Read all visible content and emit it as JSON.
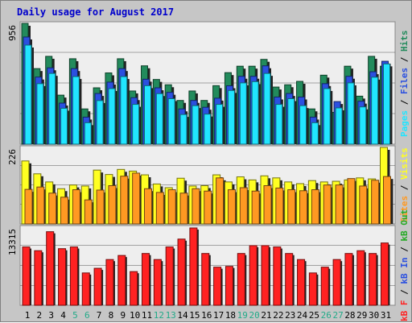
{
  "title": "Daily usage for August 2017",
  "colors": {
    "hits": "#228b5c",
    "files": "#2b50e0",
    "pages": "#21e5ff",
    "visits": "#ffff22",
    "sites": "#ff9922",
    "kbf": "#ff2222",
    "kbin": "#2b50e0",
    "kbout": "#22aa22",
    "title": "#0000cc",
    "weekend": "#22aa88",
    "weekday": "#000000",
    "panel_bg": "#eeeeee",
    "frame_bg": "#c6c6c6"
  },
  "legends": {
    "top": [
      {
        "text": "Pages",
        "color": "#21e5ff"
      },
      {
        "text": " / ",
        "color": "#000000"
      },
      {
        "text": "Files",
        "color": "#2b50e0"
      },
      {
        "text": " / ",
        "color": "#000000"
      },
      {
        "text": "Hits",
        "color": "#228b5c"
      }
    ],
    "middle": [
      {
        "text": "Sites",
        "color": "#ff9922"
      },
      {
        "text": " / ",
        "color": "#000000"
      },
      {
        "text": "Visits",
        "color": "#ffff22"
      }
    ],
    "bottom": [
      {
        "text": "kB F",
        "color": "#ff2222"
      },
      {
        "text": " / ",
        "color": "#000000"
      },
      {
        "text": "kB In",
        "color": "#2b50e0"
      },
      {
        "text": " / ",
        "color": "#000000"
      },
      {
        "text": "kB Out",
        "color": "#22aa22"
      }
    ]
  },
  "chart_data": [
    {
      "type": "bar",
      "panel": "hits-files-pages",
      "categories": [
        "1",
        "2",
        "3",
        "4",
        "5",
        "6",
        "7",
        "8",
        "9",
        "10",
        "11",
        "12",
        "13",
        "14",
        "15",
        "16",
        "17",
        "18",
        "19",
        "20",
        "21",
        "22",
        "23",
        "24",
        "25",
        "26",
        "27",
        "28",
        "29",
        "30",
        "31"
      ],
      "ylabel": "956",
      "ylim": [
        0,
        956
      ],
      "series": [
        {
          "name": "Hits",
          "values": [
            956,
            598,
            695,
            388,
            676,
            279,
            446,
            564,
            676,
            421,
            620,
            512,
            470,
            346,
            421,
            346,
            463,
            566,
            617,
            617,
            671,
            452,
            470,
            497,
            279,
            546,
            252,
            617,
            380,
            695,
            617
          ]
        },
        {
          "name": "Files",
          "values": [
            848,
            531,
            604,
            325,
            598,
            214,
            401,
            491,
            598,
            368,
            514,
            446,
            410,
            279,
            346,
            292,
            364,
            462,
            537,
            537,
            620,
            373,
            401,
            373,
            214,
            479,
            337,
            537,
            340,
            573,
            656
          ]
        },
        {
          "name": "Pages",
          "values": [
            784,
            479,
            560,
            284,
            535,
            170,
            345,
            440,
            535,
            315,
            463,
            400,
            360,
            235,
            305,
            238,
            315,
            425,
            485,
            495,
            560,
            315,
            360,
            305,
            170,
            440,
            287,
            485,
            295,
            530,
            635
          ]
        }
      ]
    },
    {
      "type": "bar",
      "panel": "visits-sites",
      "categories": [
        "1",
        "2",
        "3",
        "4",
        "5",
        "6",
        "7",
        "8",
        "9",
        "10",
        "11",
        "12",
        "13",
        "14",
        "15",
        "16",
        "17",
        "18",
        "19",
        "20",
        "21",
        "22",
        "23",
        "24",
        "25",
        "26",
        "27",
        "28",
        "29",
        "30",
        "31"
      ],
      "ylabel": "226",
      "ylim": [
        0,
        226
      ],
      "series": [
        {
          "name": "Visits",
          "values": [
            186,
            148,
            124,
            104,
            115,
            112,
            159,
            146,
            161,
            156,
            145,
            118,
            107,
            135,
            112,
            113,
            145,
            124,
            139,
            130,
            142,
            136,
            124,
            119,
            128,
            124,
            126,
            130,
            136,
            133,
            226
          ]
        },
        {
          "name": "Sites",
          "values": [
            102,
            109,
            91,
            79,
            101,
            71,
            100,
            113,
            141,
            150,
            104,
            93,
            101,
            91,
            104,
            97,
            136,
            101,
            107,
            97,
            113,
            106,
            101,
            98,
            101,
            115,
            115,
            134,
            112,
            129,
            140
          ]
        }
      ]
    },
    {
      "type": "bar",
      "panel": "kbytes",
      "categories": [
        "1",
        "2",
        "3",
        "4",
        "5",
        "6",
        "7",
        "8",
        "9",
        "10",
        "11",
        "12",
        "13",
        "14",
        "15",
        "16",
        "17",
        "18",
        "19",
        "20",
        "21",
        "22",
        "23",
        "24",
        "25",
        "26",
        "27",
        "28",
        "29",
        "30",
        "31"
      ],
      "ylabel": "13315",
      "ylim": [
        0,
        13315
      ],
      "series": [
        {
          "name": "kB F",
          "values": [
            10050,
            9400,
            12670,
            9750,
            10050,
            5570,
            6370,
            7880,
            8580,
            5800,
            8920,
            7880,
            10050,
            11400,
            13315,
            8920,
            6570,
            6700,
            8920,
            10280,
            10280,
            10050,
            8920,
            7880,
            5570,
            6570,
            7880,
            8920,
            9400,
            8920,
            10730
          ]
        }
      ]
    }
  ]
}
